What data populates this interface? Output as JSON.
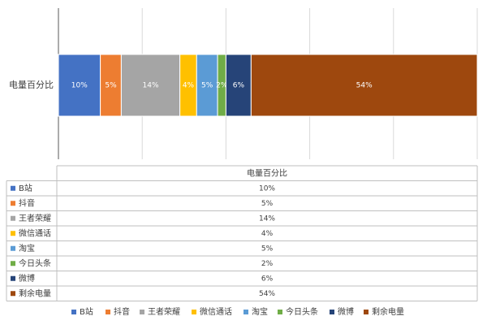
{
  "chart_data": {
    "type": "bar",
    "orientation": "horizontal",
    "stacked": true,
    "percent": true,
    "category_label": "电量百分比",
    "xlim": [
      0,
      1
    ],
    "grid": true,
    "data_labels": [
      "10%",
      "5%",
      "14%",
      "4%",
      "5%",
      "2%",
      "6%",
      "54%"
    ],
    "series": [
      {
        "name": "B站",
        "value": 0.1,
        "color": "#4472C4"
      },
      {
        "name": "抖音",
        "value": 0.05,
        "color": "#ED7D31"
      },
      {
        "name": "王者荣耀",
        "value": 0.14,
        "color": "#A5A5A5"
      },
      {
        "name": "微信通话",
        "value": 0.04,
        "color": "#FFC000"
      },
      {
        "name": "淘宝",
        "value": 0.05,
        "color": "#5B9BD5"
      },
      {
        "name": "今日头条",
        "value": 0.02,
        "color": "#70AD47"
      },
      {
        "name": "微博",
        "value": 0.06,
        "color": "#264478"
      },
      {
        "name": "剩余电量",
        "value": 0.54,
        "color": "#9E480E"
      }
    ],
    "data_table": {
      "header": "电量百分比",
      "rows": [
        "10%",
        "5%",
        "14%",
        "4%",
        "5%",
        "2%",
        "6%",
        "54%"
      ]
    },
    "legend_position": "bottom"
  }
}
